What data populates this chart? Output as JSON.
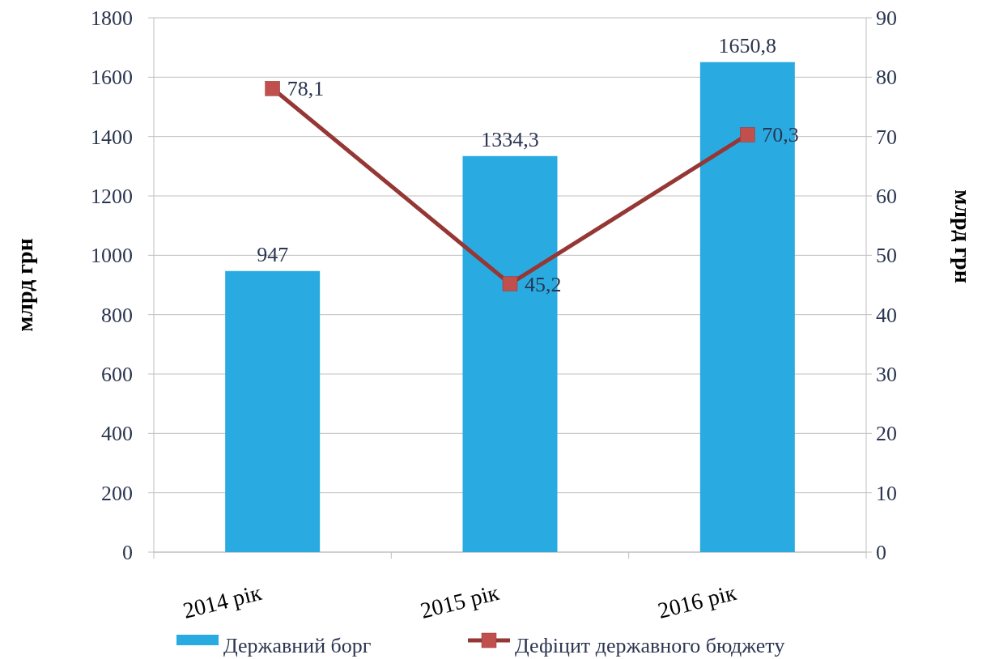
{
  "chart_data": {
    "type": "bar",
    "categories": [
      "2014 рік",
      "2015 рік",
      "2016 рік"
    ],
    "ylabel": "млрд грн",
    "y2label": "млрд грн",
    "ylim": [
      0,
      1800
    ],
    "yticks": [
      0,
      200,
      400,
      600,
      800,
      1000,
      1200,
      1400,
      1600,
      1800
    ],
    "y2lim": [
      0,
      90
    ],
    "y2ticks": [
      0,
      10,
      20,
      30,
      40,
      50,
      60,
      70,
      80,
      90
    ],
    "grid": "y",
    "legend": "bottom",
    "series": [
      {
        "name": "Державний борг",
        "color": "#29abe2",
        "values": [
          947,
          1334.3,
          1650.8
        ],
        "value_labels": [
          "947",
          "1334,3",
          "1650,8"
        ]
      },
      {
        "name": "Дефіцит державного бюджету",
        "type": "line",
        "axis": "y2",
        "color": "#953735",
        "marker": "square",
        "values": [
          78.1,
          45.2,
          70.3
        ],
        "value_labels": [
          "78,1",
          "45,2",
          "70,3"
        ]
      }
    ]
  }
}
